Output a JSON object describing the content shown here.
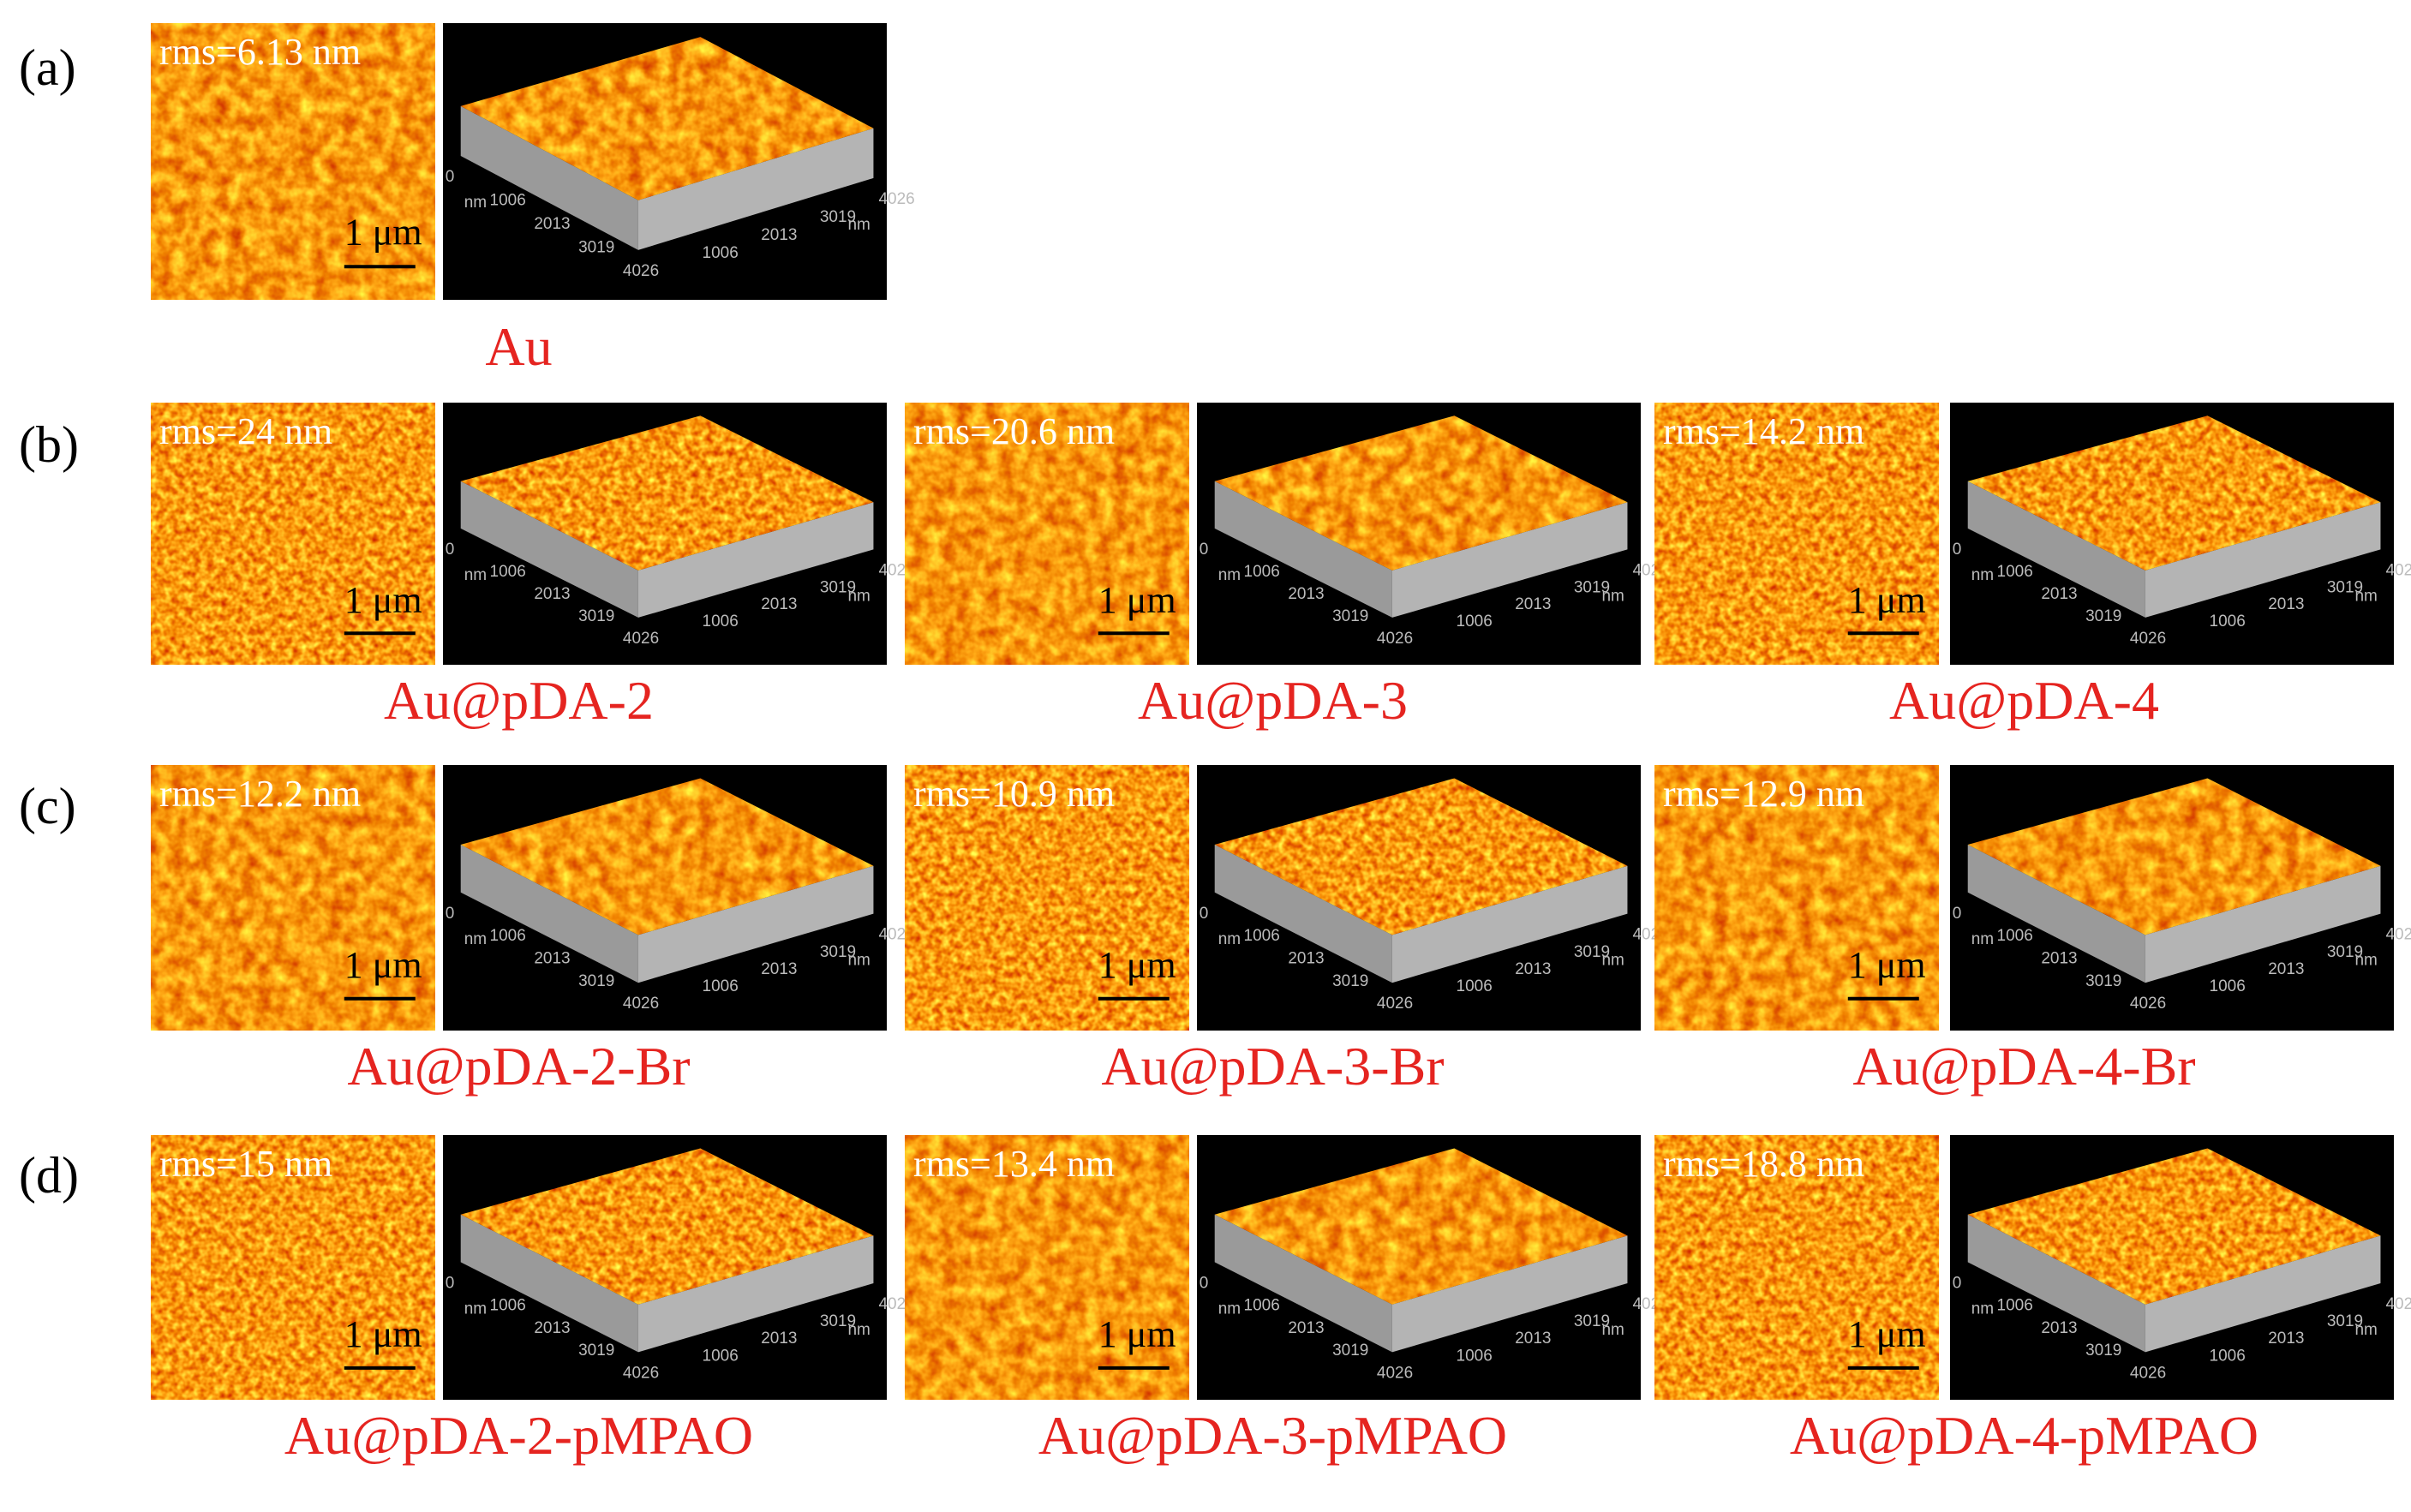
{
  "panels": [
    {
      "label": "(a)",
      "samples": [
        {
          "rms": "rms=6.13 nm",
          "scale_bar": "1 μm",
          "caption": "Au"
        }
      ]
    },
    {
      "label": "(b)",
      "samples": [
        {
          "rms": "rms=24 nm",
          "scale_bar": "1 μm",
          "caption": "Au@pDA-2"
        },
        {
          "rms": "rms=20.6 nm",
          "scale_bar": "1 μm",
          "caption": "Au@pDA-3"
        },
        {
          "rms": "rms=14.2 nm",
          "scale_bar": "1 μm",
          "caption": "Au@pDA-4"
        }
      ]
    },
    {
      "label": "(c)",
      "samples": [
        {
          "rms": "rms=12.2 nm",
          "scale_bar": "1 μm",
          "caption": "Au@pDA-2-Br"
        },
        {
          "rms": "rms=10.9 nm",
          "scale_bar": "1 μm",
          "caption": "Au@pDA-3-Br"
        },
        {
          "rms": "rms=12.9 nm",
          "scale_bar": "1 μm",
          "caption": "Au@pDA-4-Br"
        }
      ]
    },
    {
      "label": "(d)",
      "samples": [
        {
          "rms": "rms=15 nm",
          "scale_bar": "1 μm",
          "caption": "Au@pDA-2-pMPAO"
        },
        {
          "rms": "rms=13.4 nm",
          "scale_bar": "1 μm",
          "caption": "Au@pDA-3-pMPAO"
        },
        {
          "rms": "rms=18.8 nm",
          "scale_bar": "1 μm",
          "caption": "Au@pDA-4-pMPAO"
        }
      ]
    }
  ],
  "axis_3d": {
    "ticks": [
      "0",
      "1006",
      "2013",
      "3019",
      "4026"
    ],
    "unit": "nm"
  }
}
